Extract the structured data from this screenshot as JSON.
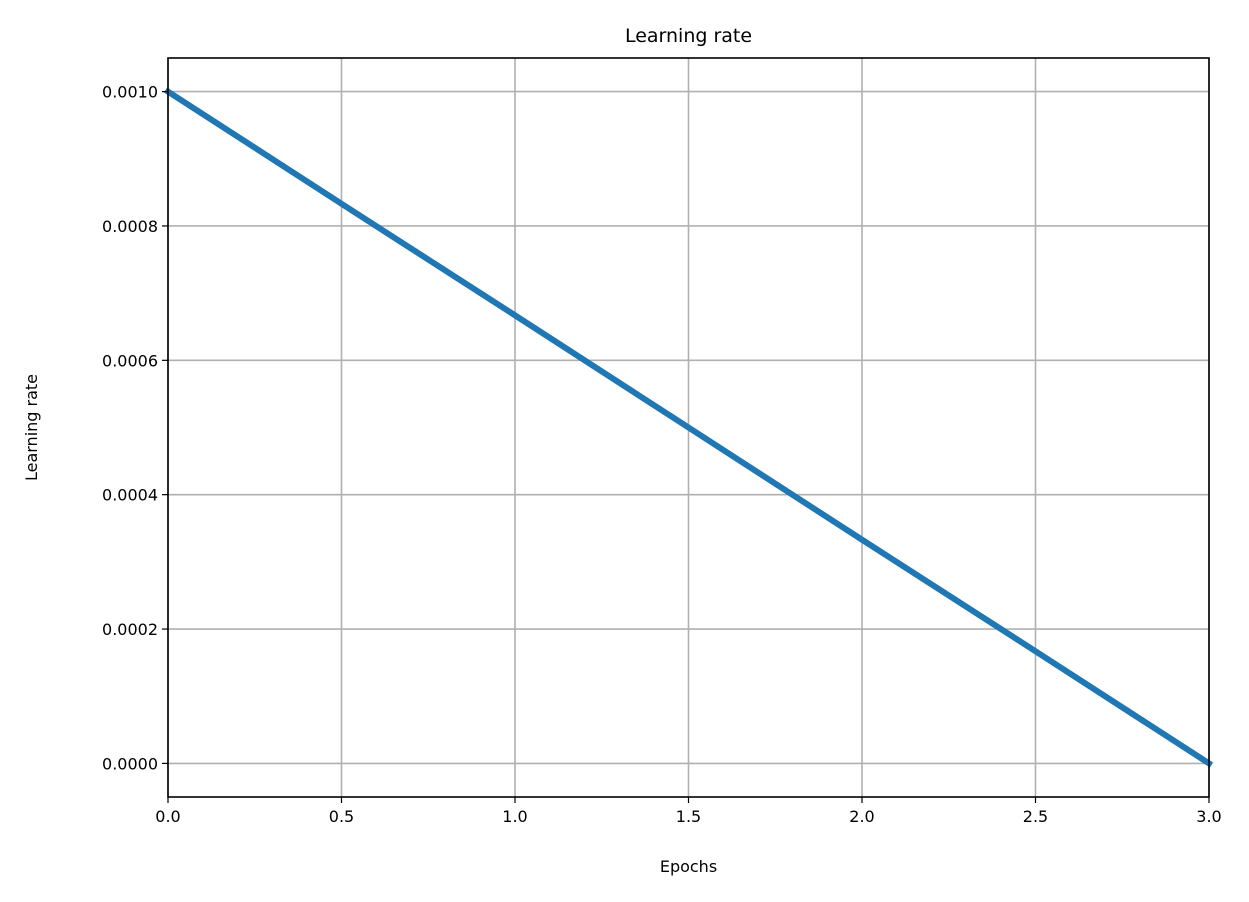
{
  "chart_data": {
    "type": "line",
    "title": "Learning rate",
    "xlabel": "Epochs",
    "ylabel": "Learning rate",
    "xlim": [
      0,
      3
    ],
    "ylim": [
      -5e-05,
      0.00105
    ],
    "x_ticks": [
      0,
      0.5,
      1,
      1.5,
      2,
      2.5,
      3
    ],
    "x_tick_labels": [
      "0.0",
      "0.5",
      "1.0",
      "1.5",
      "2.0",
      "2.5",
      "3.0"
    ],
    "y_ticks": [
      0,
      0.0002,
      0.0004,
      0.0006,
      0.0008,
      0.001
    ],
    "y_tick_labels": [
      "0.0000",
      "0.0002",
      "0.0004",
      "0.0006",
      "0.0008",
      "0.0010"
    ],
    "grid": true,
    "series": [
      {
        "color": "#1f77b4",
        "x": [
          0,
          0.5,
          1,
          1.5,
          2,
          2.5,
          3
        ],
        "y": [
          0.001,
          0.000833,
          0.000667,
          0.0005,
          0.000333,
          0.000167,
          0
        ]
      }
    ]
  }
}
